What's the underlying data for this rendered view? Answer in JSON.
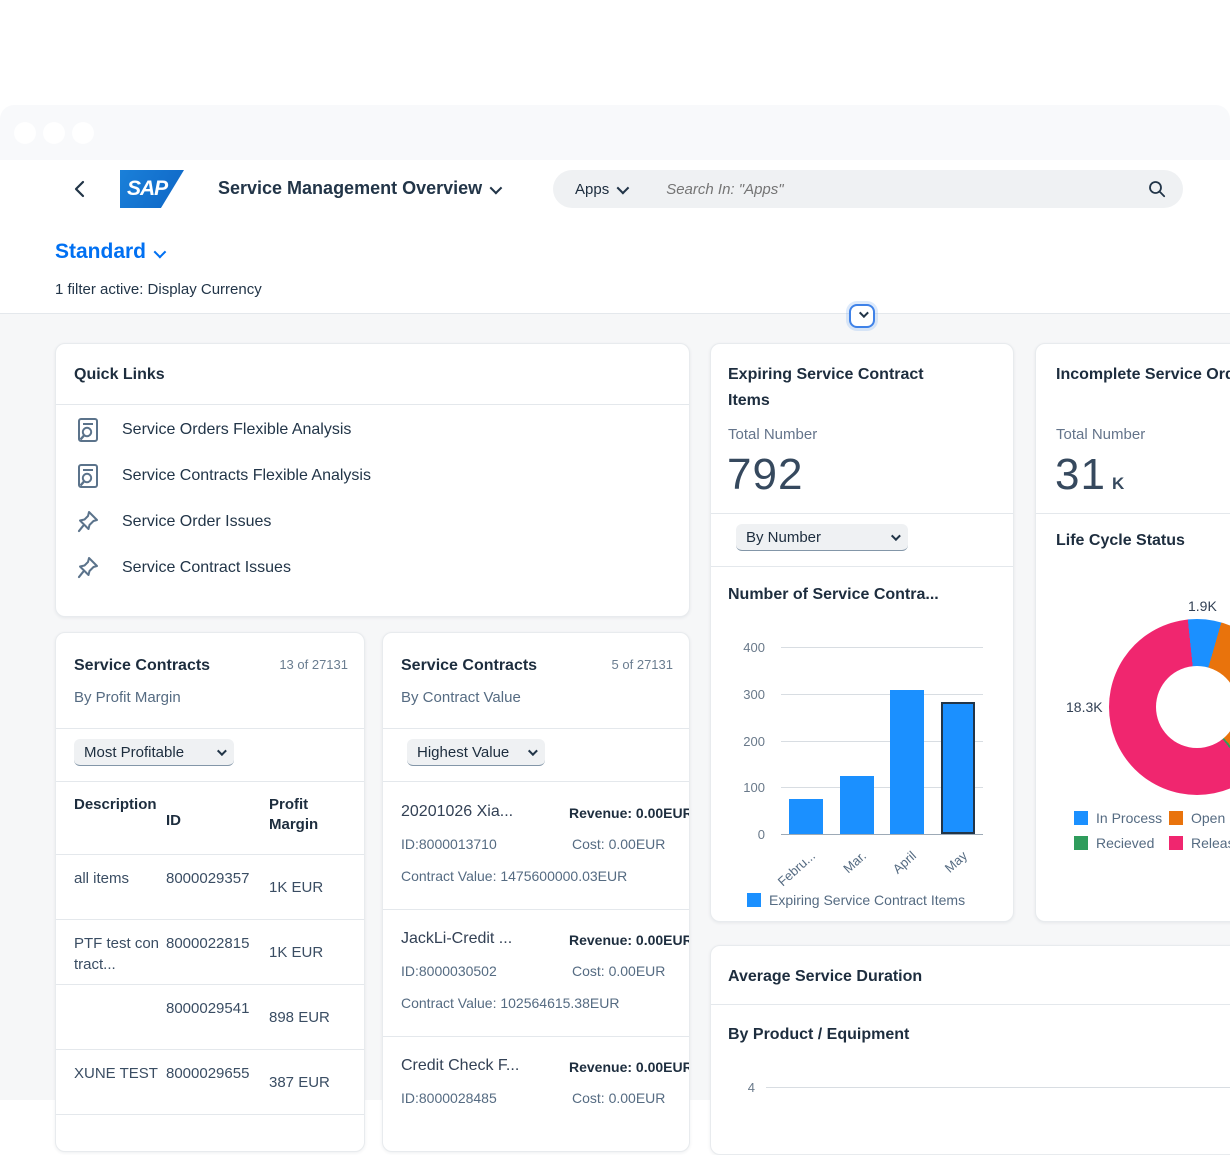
{
  "header": {
    "app_title": "Service Management Overview",
    "apps_label": "Apps",
    "search_placeholder": "Search In: \"Apps\"",
    "logo_text": "SAP"
  },
  "page": {
    "variant": "Standard",
    "filter_info": "1 filter active: Display Currency"
  },
  "quick_links": {
    "title": "Quick Links",
    "items": [
      {
        "icon": "chart-search-icon",
        "label": "Service Orders Flexible Analysis"
      },
      {
        "icon": "chart-search-icon",
        "label": "Service Contracts Flexible Analysis"
      },
      {
        "icon": "pin-icon",
        "label": "Service Order Issues"
      },
      {
        "icon": "pin-icon",
        "label": "Service Contract Issues"
      }
    ]
  },
  "contracts_profit": {
    "title": "Service Contracts",
    "count": "13 of 27131",
    "subtitle": "By Profit Margin",
    "filter": "Most Profitable",
    "columns": [
      "Description",
      "ID",
      "Profit Margin"
    ],
    "rows": [
      {
        "description": "all items",
        "id": "8000029357",
        "margin": "1K EUR"
      },
      {
        "description": "PTF test contract...",
        "id": "8000022815",
        "margin": "1K EUR"
      },
      {
        "description": "",
        "id": "8000029541",
        "margin": "898 EUR"
      },
      {
        "description": "XUNE TEST",
        "id": "8000029655",
        "margin": "387 EUR"
      }
    ]
  },
  "contracts_value": {
    "title": "Service Contracts",
    "count": "5 of 27131",
    "subtitle": "By Contract Value",
    "filter": "Highest Value",
    "items": [
      {
        "name": "20201026 Xia...",
        "revenue": "Revenue: 0.00EUR",
        "id": "ID:8000013710",
        "cost": "Cost: 0.00EUR",
        "value": "Contract Value: 1475600000.03EUR"
      },
      {
        "name": "JackLi-Credit ...",
        "revenue": "Revenue: 0.00EUR",
        "id": "ID:8000030502",
        "cost": "Cost: 0.00EUR",
        "value": "Contract Value: 102564615.38EUR"
      },
      {
        "name": "Credit Check F...",
        "revenue": "Revenue: 0.00EUR",
        "id": "ID:8000028485",
        "cost": "Cost: 0.00EUR",
        "value": ""
      }
    ]
  },
  "expiring": {
    "title": "Expiring Service Contract Items",
    "kpi_label": "Total Number",
    "kpi_value": "792",
    "filter": "By Number"
  },
  "incomplete": {
    "title": "Incomplete Service Orders",
    "kpi_label": "Total Number",
    "kpi_value": "31",
    "kpi_unit": "K",
    "section_title": "Life Cycle Status"
  },
  "avg_duration": {
    "title": "Average Service Duration",
    "section_title": "By Product / Equipment",
    "visible_tick": "4"
  },
  "chart_data": [
    {
      "id": "expiring_bar",
      "type": "bar",
      "title": "Number of Service Contra...",
      "categories": [
        "Febru...",
        "Mar.",
        "April",
        "May"
      ],
      "values": [
        75,
        125,
        307,
        283
      ],
      "selected_index": 3,
      "ylim": [
        0,
        400
      ],
      "yticks": [
        0,
        100,
        200,
        300,
        400
      ],
      "bar_color": "#1b90ff",
      "selected_border_color": "#223548",
      "legend": [
        "Expiring Service Contract Items"
      ],
      "legend_position": "bottom"
    },
    {
      "id": "lifecycle_donut",
      "type": "pie",
      "title": "Life Cycle Status",
      "labels": [
        "In Process",
        "Open",
        "Recieved",
        "Released"
      ],
      "values": [
        1.9,
        10.6,
        0.2,
        18.3
      ],
      "unit": "K",
      "colors": [
        "#1b90ff",
        "#e9730c",
        "#2f9c5c",
        "#f0266f"
      ],
      "data_labels_visible": [
        "1.9K",
        "18.3K"
      ],
      "legend_position": "bottom"
    },
    {
      "id": "avg_duration_chart",
      "type": "bar",
      "title": "By Product / Equipment",
      "categories": [],
      "values": [],
      "yticks_visible": [
        4
      ],
      "ylim": [
        0,
        4
      ]
    }
  ]
}
